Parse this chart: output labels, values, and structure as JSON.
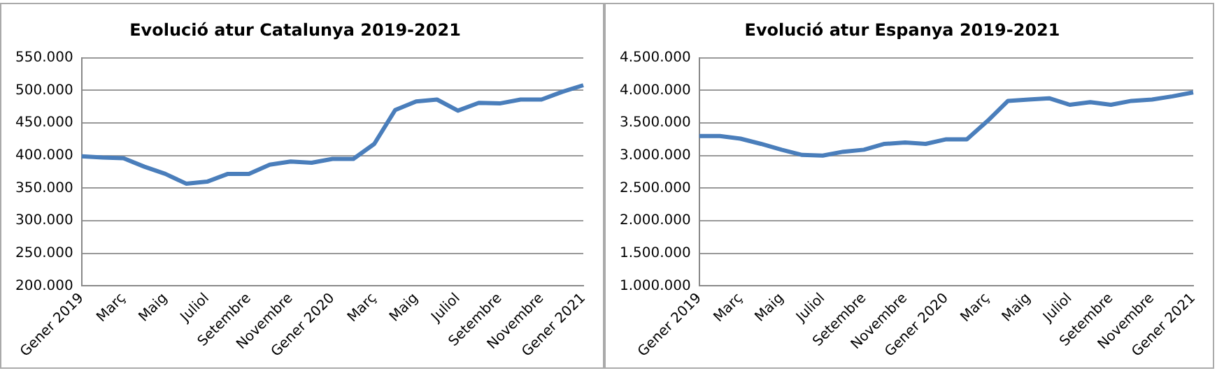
{
  "chart_data": [
    {
      "type": "line",
      "title": "Evolució atur Catalunya 2019-2021",
      "categories": [
        "Gener 2019",
        null,
        "Març",
        null,
        "Maig",
        null,
        "Juliol",
        null,
        "Setembre",
        null,
        "Novembre",
        null,
        "Gener 2020",
        null,
        "Març",
        null,
        "Maig",
        null,
        "Juliol",
        null,
        "Setembre",
        null,
        "Novembre",
        null,
        "Gener 2021"
      ],
      "series": [
        {
          "color": "#4a7ebb",
          "values": [
            399000,
            397000,
            396000,
            383000,
            372000,
            357000,
            360000,
            372000,
            372000,
            386000,
            391000,
            389000,
            395000,
            395000,
            418000,
            470000,
            483000,
            486000,
            469000,
            481000,
            480000,
            486000,
            486000,
            498000,
            508000
          ]
        }
      ],
      "ylim": [
        200000,
        550000
      ],
      "yticks": [
        {
          "value": 200000,
          "label": "200.000"
        },
        {
          "value": 250000,
          "label": "250.000"
        },
        {
          "value": 300000,
          "label": "300.000"
        },
        {
          "value": 350000,
          "label": "350.000"
        },
        {
          "value": 400000,
          "label": "400.000"
        },
        {
          "value": 450000,
          "label": "450.000"
        },
        {
          "value": 500000,
          "label": "500.000"
        },
        {
          "value": 550000,
          "label": "550.000"
        }
      ],
      "grid": "y",
      "legend": false,
      "marker": "none",
      "line_style": "solid"
    },
    {
      "type": "line",
      "title": "Evolució atur Espanya 2019-2021",
      "categories": [
        "Gener 2019",
        null,
        "Març",
        null,
        "Maig",
        null,
        "Juliol",
        null,
        "Setembre",
        null,
        "Novembre",
        null,
        "Gener 2020",
        null,
        "Març",
        null,
        "Maig",
        null,
        "Juliol",
        null,
        "Setembre",
        null,
        "Novembre",
        null,
        "Gener 2021"
      ],
      "series": [
        {
          "color": "#4a7ebb",
          "values": [
            3300000,
            3300000,
            3260000,
            3180000,
            3090000,
            3010000,
            3000000,
            3060000,
            3090000,
            3180000,
            3200000,
            3180000,
            3250000,
            3250000,
            3530000,
            3840000,
            3860000,
            3880000,
            3780000,
            3820000,
            3780000,
            3840000,
            3860000,
            3910000,
            3970000
          ]
        }
      ],
      "ylim": [
        1000000,
        4500000
      ],
      "yticks": [
        {
          "value": 1000000,
          "label": "1.000.000"
        },
        {
          "value": 1500000,
          "label": "1.500.000"
        },
        {
          "value": 2000000,
          "label": "2.000.000"
        },
        {
          "value": 2500000,
          "label": "2.500.000"
        },
        {
          "value": 3000000,
          "label": "3.000.000"
        },
        {
          "value": 3500000,
          "label": "3.500.000"
        },
        {
          "value": 4000000,
          "label": "4.000.000"
        },
        {
          "value": 4500000,
          "label": "4.500.000"
        }
      ],
      "grid": "y",
      "legend": false,
      "marker": "none",
      "line_style": "solid"
    }
  ]
}
